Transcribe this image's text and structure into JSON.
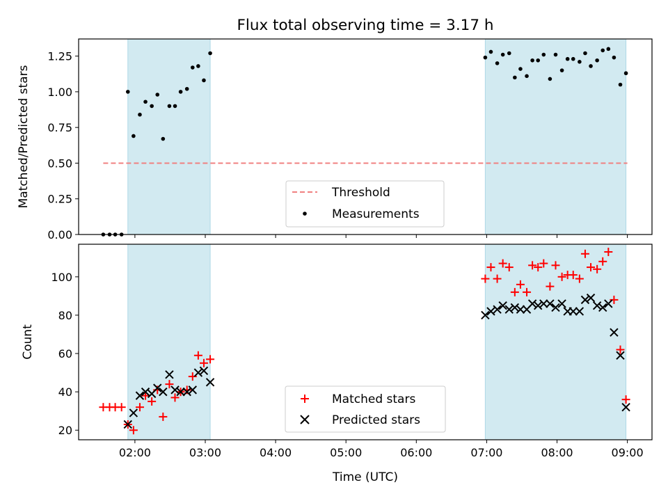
{
  "chart_data": {
    "title": "Flux total observing time = 3.17 h",
    "x_label": "Time (UTC)",
    "x_unit": "hours UTC",
    "x_lim": [
      1.2,
      9.35
    ],
    "x_ticks": [
      {
        "value": 2,
        "label": "02:00"
      },
      {
        "value": 3,
        "label": "03:00"
      },
      {
        "value": 4,
        "label": "04:00"
      },
      {
        "value": 5,
        "label": "05:00"
      },
      {
        "value": 6,
        "label": "06:00"
      },
      {
        "value": 7,
        "label": "07:00"
      },
      {
        "value": 8,
        "label": "08:00"
      },
      {
        "value": 9,
        "label": "09:00"
      }
    ],
    "shaded_spans": [
      {
        "start": 1.9,
        "end": 3.07,
        "color": "#add8e6"
      },
      {
        "start": 6.98,
        "end": 8.98,
        "color": "#add8e6"
      }
    ],
    "panels": [
      {
        "type": "scatter",
        "ylabel": "Matched/Predicted stars",
        "ylim": [
          0,
          1.37
        ],
        "y_ticks": [
          "0.00",
          "0.25",
          "0.50",
          "0.75",
          "1.00",
          "1.25"
        ],
        "threshold": {
          "name": "Threshold",
          "y": 0.5,
          "x_start": 1.55,
          "x_end": 9.0,
          "color": "#f08080"
        },
        "measurements": {
          "name": "Measurements",
          "color": "#000000",
          "x": [
            1.55,
            1.64,
            1.72,
            1.81,
            1.9,
            1.98,
            2.07,
            2.15,
            2.24,
            2.32,
            2.4,
            2.49,
            2.57,
            2.65,
            2.74,
            2.82,
            2.9,
            2.98,
            3.07,
            6.98,
            7.06,
            7.15,
            7.23,
            7.32,
            7.4,
            7.48,
            7.57,
            7.65,
            7.73,
            7.81,
            7.9,
            7.98,
            8.07,
            8.15,
            8.23,
            8.32,
            8.4,
            8.48,
            8.57,
            8.65,
            8.73,
            8.81,
            8.9,
            8.98
          ],
          "y": [
            0,
            0,
            0,
            0,
            1.0,
            0.69,
            0.84,
            0.93,
            0.9,
            0.98,
            0.67,
            0.9,
            0.9,
            1.0,
            1.02,
            1.17,
            1.18,
            1.08,
            1.27,
            1.24,
            1.28,
            1.2,
            1.26,
            1.27,
            1.1,
            1.16,
            1.11,
            1.22,
            1.22,
            1.26,
            1.09,
            1.26,
            1.15,
            1.23,
            1.23,
            1.21,
            1.27,
            1.18,
            1.22,
            1.29,
            1.3,
            1.24,
            1.05,
            1.13
          ]
        },
        "legend_position": "lower-center"
      },
      {
        "type": "scatter",
        "ylabel": "Count",
        "ylim": [
          15,
          117
        ],
        "y_ticks": [
          "20",
          "40",
          "60",
          "80",
          "100"
        ],
        "series": [
          {
            "name": "Matched stars",
            "marker": "+",
            "color": "#ff0000",
            "x": [
              1.55,
              1.64,
              1.72,
              1.81,
              1.9,
              1.98,
              2.07,
              2.15,
              2.24,
              2.32,
              2.4,
              2.49,
              2.57,
              2.65,
              2.74,
              2.82,
              2.9,
              2.98,
              3.07,
              6.98,
              7.06,
              7.15,
              7.23,
              7.32,
              7.4,
              7.48,
              7.57,
              7.65,
              7.73,
              7.81,
              7.9,
              7.98,
              8.07,
              8.15,
              8.23,
              8.32,
              8.4,
              8.48,
              8.57,
              8.65,
              8.73,
              8.81,
              8.9,
              8.98
            ],
            "y": [
              32,
              32,
              32,
              32,
              23,
              20,
              32,
              38,
              35,
              41,
              27,
              44,
              37,
              40,
              41,
              48,
              59,
              55,
              57,
              99,
              105,
              99,
              107,
              105,
              92,
              96,
              92,
              106,
              105,
              107,
              95,
              106,
              100,
              101,
              101,
              99,
              112,
              105,
              104,
              108,
              113,
              88,
              62,
              36
            ]
          },
          {
            "name": "Predicted stars",
            "marker": "x",
            "color": "#000000",
            "x": [
              1.9,
              1.98,
              2.07,
              2.15,
              2.24,
              2.32,
              2.4,
              2.49,
              2.57,
              2.65,
              2.74,
              2.82,
              2.9,
              2.98,
              3.07,
              6.98,
              7.06,
              7.15,
              7.23,
              7.32,
              7.4,
              7.48,
              7.57,
              7.65,
              7.73,
              7.81,
              7.9,
              7.98,
              8.07,
              8.15,
              8.23,
              8.32,
              8.4,
              8.48,
              8.57,
              8.65,
              8.73,
              8.81,
              8.9,
              8.98
            ],
            "y": [
              23,
              29,
              38,
              40,
              39,
              42,
              40,
              49,
              41,
              40,
              40,
              41,
              50,
              51,
              45,
              80,
              82,
              83,
              85,
              83,
              84,
              83,
              83,
              86,
              85,
              86,
              86,
              84,
              86,
              82,
              82,
              82,
              88,
              89,
              85,
              84,
              86,
              71,
              59,
              32
            ]
          }
        ],
        "legend_position": "lower-center"
      }
    ]
  }
}
